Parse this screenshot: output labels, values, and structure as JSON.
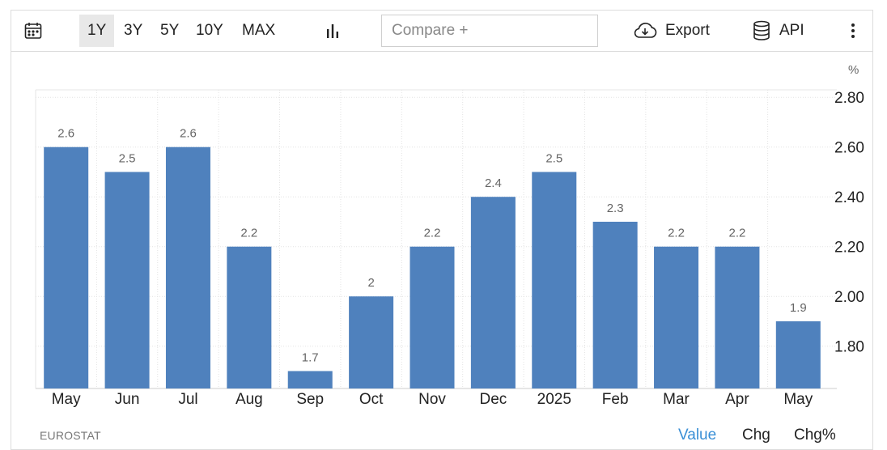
{
  "toolbar": {
    "ranges": [
      "1Y",
      "3Y",
      "5Y",
      "10Y",
      "MAX"
    ],
    "active_range": "1Y",
    "compare_placeholder": "Compare +",
    "export_label": "Export",
    "api_label": "API",
    "icons": [
      "calendar-icon",
      "bar-chart-icon",
      "cloud-download-icon",
      "database-icon",
      "more-vert-icon"
    ]
  },
  "footer": {
    "source": "EUROSTAT",
    "modes": [
      "Value",
      "Chg",
      "Chg%"
    ],
    "active_mode": "Value"
  },
  "colors": {
    "bar": "#4f81bd",
    "accent": "#3a8fd6"
  },
  "chart_data": {
    "type": "bar",
    "unit": "%",
    "categories": [
      "May",
      "Jun",
      "Jul",
      "Aug",
      "Sep",
      "Oct",
      "Nov",
      "Dec",
      "2025",
      "Feb",
      "Mar",
      "Apr",
      "May"
    ],
    "values": [
      2.6,
      2.5,
      2.6,
      2.2,
      1.7,
      2,
      2.2,
      2.4,
      2.5,
      2.3,
      2.2,
      2.2,
      1.9
    ],
    "value_labels": [
      "2.6",
      "2.5",
      "2.6",
      "2.2",
      "1.7",
      "2",
      "2.2",
      "2.4",
      "2.5",
      "2.3",
      "2.2",
      "2.2",
      "1.9"
    ],
    "y_ticks": [
      "2.80",
      "2.60",
      "2.40",
      "2.20",
      "2.00",
      "1.80"
    ],
    "y_tick_values": [
      2.8,
      2.6,
      2.4,
      2.2,
      2.0,
      1.8
    ],
    "ylim": [
      1.63,
      2.83
    ],
    "y_axis_position": "right",
    "grid": true,
    "title": "",
    "xlabel": "",
    "ylabel": ""
  }
}
